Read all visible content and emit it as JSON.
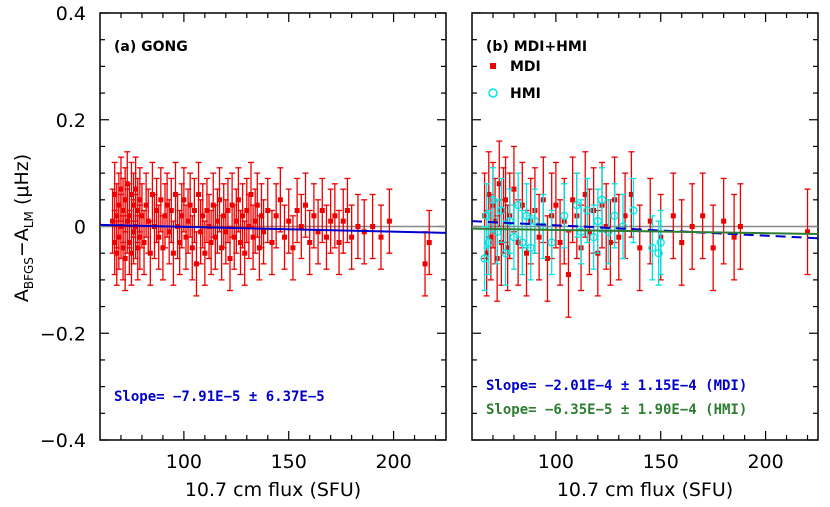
{
  "colors": {
    "mdi_gong": "#ee0000",
    "hmi": "#00e5e5",
    "fit_blue": "#0000cc",
    "fit_green": "#2e7d32",
    "zero_line": "#888888"
  },
  "chart_data": [
    {
      "type": "scatter",
      "panel": "a",
      "panel_label": "(a) GONG",
      "xlabel": "10.7 cm flux (SFU)",
      "ylabel_main": "A",
      "ylabel_sub1": "BFGS",
      "ylabel_mid": "−A",
      "ylabel_sub2": "LM",
      "ylabel_units": " (μHz)",
      "xlim": [
        60,
        225
      ],
      "ylim": [
        -0.4,
        0.4
      ],
      "x_ticks": [
        100,
        150,
        200
      ],
      "x_tick_labels": [
        "100",
        "150",
        "200"
      ],
      "y_ticks": [
        0.4,
        0.2,
        0,
        -0.2,
        -0.4
      ],
      "y_tick_labels": [
        "0.4",
        "0.2",
        "0",
        "−0.2",
        "−0.4"
      ],
      "series": [
        {
          "marker": "filled-square",
          "color": "#ee0000",
          "err": 0.06,
          "points": [
            [
              66,
              0.01
            ],
            [
              67,
              -0.03
            ],
            [
              67,
              0.06
            ],
            [
              68,
              0.02
            ],
            [
              68,
              -0.05
            ],
            [
              69,
              0.04
            ],
            [
              69,
              -0.02
            ],
            [
              70,
              0.07
            ],
            [
              70,
              0.0
            ],
            [
              71,
              -0.04
            ],
            [
              71,
              0.03
            ],
            [
              72,
              0.05
            ],
            [
              72,
              -0.06
            ],
            [
              73,
              0.01
            ],
            [
              73,
              0.08
            ],
            [
              74,
              -0.03
            ],
            [
              74,
              0.02
            ],
            [
              75,
              0.06
            ],
            [
              75,
              -0.05
            ],
            [
              76,
              0.04
            ],
            [
              76,
              -0.01
            ],
            [
              77,
              0.07
            ],
            [
              77,
              0.0
            ],
            [
              78,
              -0.04
            ],
            [
              78,
              0.03
            ],
            [
              79,
              0.05
            ],
            [
              79,
              -0.02
            ],
            [
              80,
              0.02
            ],
            [
              81,
              -0.03
            ],
            [
              82,
              0.04
            ],
            [
              83,
              0.01
            ],
            [
              84,
              -0.05
            ],
            [
              85,
              0.06
            ],
            [
              86,
              0.0
            ],
            [
              87,
              0.03
            ],
            [
              88,
              -0.02
            ],
            [
              89,
              0.05
            ],
            [
              90,
              -0.04
            ],
            [
              91,
              0.02
            ],
            [
              92,
              0.04
            ],
            [
              93,
              -0.01
            ],
            [
              94,
              0.03
            ],
            [
              95,
              -0.05
            ],
            [
              96,
              0.06
            ],
            [
              97,
              0.0
            ],
            [
              98,
              -0.03
            ],
            [
              99,
              0.02
            ],
            [
              100,
              0.05
            ],
            [
              101,
              -0.02
            ],
            [
              102,
              0.01
            ],
            [
              103,
              0.04
            ],
            [
              104,
              -0.04
            ],
            [
              105,
              0.03
            ],
            [
              106,
              -0.07
            ],
            [
              107,
              0.06
            ],
            [
              108,
              -0.01
            ],
            [
              109,
              0.02
            ],
            [
              110,
              -0.05
            ],
            [
              111,
              0.03
            ],
            [
              112,
              0.0
            ],
            [
              113,
              -0.03
            ],
            [
              114,
              0.04
            ],
            [
              115,
              -0.02
            ],
            [
              116,
              0.01
            ],
            [
              117,
              0.05
            ],
            [
              118,
              -0.04
            ],
            [
              119,
              0.02
            ],
            [
              120,
              -0.01
            ],
            [
              121,
              0.03
            ],
            [
              122,
              -0.06
            ],
            [
              123,
              0.04
            ],
            [
              124,
              -0.02
            ],
            [
              125,
              0.01
            ],
            [
              126,
              0.05
            ],
            [
              127,
              -0.03
            ],
            [
              128,
              0.02
            ],
            [
              129,
              -0.05
            ],
            [
              130,
              0.03
            ],
            [
              131,
              0.0
            ],
            [
              132,
              0.06
            ],
            [
              133,
              -0.02
            ],
            [
              134,
              0.01
            ],
            [
              135,
              0.04
            ],
            [
              136,
              -0.04
            ],
            [
              137,
              0.02
            ],
            [
              138,
              -0.01
            ],
            [
              140,
              0.03
            ],
            [
              142,
              -0.03
            ],
            [
              144,
              0.02
            ],
            [
              146,
              0.05
            ],
            [
              148,
              -0.02
            ],
            [
              150,
              0.01
            ],
            [
              152,
              -0.04
            ],
            [
              154,
              0.03
            ],
            [
              156,
              0.0
            ],
            [
              158,
              0.04
            ],
            [
              160,
              -0.03
            ],
            [
              162,
              0.02
            ],
            [
              164,
              -0.01
            ],
            [
              166,
              0.03
            ],
            [
              168,
              -0.02
            ],
            [
              170,
              0.01
            ],
            [
              172,
              0.02
            ],
            [
              174,
              -0.03
            ],
            [
              176,
              0.01
            ],
            [
              178,
              0.03
            ],
            [
              180,
              -0.02
            ],
            [
              183,
              0.0
            ],
            [
              186,
              -0.01
            ],
            [
              190,
              0.0
            ],
            [
              194,
              -0.02
            ],
            [
              198,
              0.01
            ],
            [
              215,
              -0.07
            ],
            [
              217,
              -0.03
            ]
          ]
        }
      ],
      "fits": [
        {
          "color": "#0000cc",
          "style": "solid",
          "y_at_xmin": 0.003,
          "y_at_xmax": -0.012
        }
      ],
      "annotations": [
        {
          "text": "Slope= −7.91E−5 ± 6.37E−5",
          "color": "#0000cc"
        }
      ]
    },
    {
      "type": "scatter",
      "panel": "b",
      "panel_label": "(b) MDI+HMI",
      "xlabel": "10.7 cm flux (SFU)",
      "xlim": [
        60,
        225
      ],
      "ylim": [
        -0.4,
        0.4
      ],
      "x_ticks": [
        100,
        150,
        200
      ],
      "x_tick_labels": [
        "100",
        "150",
        "200"
      ],
      "legend": [
        {
          "label": "MDI",
          "marker": "filled-square",
          "color": "#ee0000"
        },
        {
          "label": "HMI",
          "marker": "open-circle",
          "color": "#00e5e5"
        }
      ],
      "series": [
        {
          "name": "MDI",
          "marker": "filled-square",
          "color": "#ee0000",
          "err": 0.08,
          "points": [
            [
              66,
              0.02
            ],
            [
              67,
              -0.05
            ],
            [
              68,
              0.06
            ],
            [
              69,
              -0.02
            ],
            [
              70,
              0.04
            ],
            [
              71,
              0.01
            ],
            [
              72,
              -0.06
            ],
            [
              73,
              0.08
            ],
            [
              74,
              -0.03
            ],
            [
              75,
              0.03
            ],
            [
              76,
              0.05
            ],
            [
              77,
              -0.04
            ],
            [
              78,
              0.02
            ],
            [
              80,
              0.07
            ],
            [
              82,
              -0.03
            ],
            [
              84,
              0.04
            ],
            [
              86,
              -0.05
            ],
            [
              88,
              0.01
            ],
            [
              90,
              0.03
            ],
            [
              92,
              -0.02
            ],
            [
              94,
              0.05
            ],
            [
              96,
              -0.06
            ],
            [
              98,
              0.02
            ],
            [
              100,
              0.04
            ],
            [
              102,
              -0.03
            ],
            [
              104,
              0.01
            ],
            [
              106,
              -0.09
            ],
            [
              108,
              0.05
            ],
            [
              110,
              0.02
            ],
            [
              112,
              -0.04
            ],
            [
              114,
              0.06
            ],
            [
              116,
              -0.01
            ],
            [
              118,
              0.03
            ],
            [
              120,
              -0.05
            ],
            [
              122,
              0.04
            ],
            [
              124,
              0.0
            ],
            [
              126,
              -0.03
            ],
            [
              128,
              0.05
            ],
            [
              130,
              -0.02
            ],
            [
              133,
              0.02
            ],
            [
              136,
              0.06
            ],
            [
              140,
              -0.04
            ],
            [
              145,
              0.01
            ],
            [
              150,
              -0.02
            ],
            [
              156,
              0.02
            ],
            [
              160,
              -0.03
            ],
            [
              165,
              0.0
            ],
            [
              170,
              0.02
            ],
            [
              175,
              -0.04
            ],
            [
              180,
              0.01
            ],
            [
              185,
              -0.02
            ],
            [
              188,
              0.0
            ],
            [
              220,
              -0.01
            ]
          ]
        },
        {
          "name": "HMI",
          "marker": "open-circle",
          "color": "#00e5e5",
          "err": 0.06,
          "points": [
            [
              66,
              -0.06
            ],
            [
              67,
              0.02
            ],
            [
              68,
              -0.03
            ],
            [
              70,
              0.05
            ],
            [
              72,
              -0.01
            ],
            [
              74,
              0.03
            ],
            [
              76,
              -0.05
            ],
            [
              78,
              0.01
            ],
            [
              80,
              -0.02
            ],
            [
              82,
              0.04
            ],
            [
              84,
              -0.03
            ],
            [
              86,
              0.02
            ],
            [
              88,
              -0.04
            ],
            [
              90,
              0.01
            ],
            [
              94,
              0.0
            ],
            [
              98,
              -0.03
            ],
            [
              104,
              0.02
            ],
            [
              110,
              0.04
            ],
            [
              112,
              -0.01
            ],
            [
              115,
              0.03
            ],
            [
              118,
              -0.02
            ],
            [
              120,
              0.01
            ],
            [
              122,
              0.05
            ],
            [
              125,
              -0.01
            ],
            [
              128,
              0.02
            ],
            [
              132,
              0.0
            ],
            [
              137,
              0.03
            ],
            [
              146,
              -0.04
            ],
            [
              149,
              -0.05
            ],
            [
              150,
              -0.03
            ]
          ]
        }
      ],
      "fits": [
        {
          "color": "#0000cc",
          "style": "dashed",
          "y_at_xmin": 0.01,
          "y_at_xmax": -0.022
        },
        {
          "color": "#2e7d32",
          "style": "solid",
          "y_at_xmin": -0.004,
          "y_at_xmax": -0.014
        }
      ],
      "annotations": [
        {
          "text": "Slope= −2.01E−4 ± 1.15E−4 (MDI)",
          "color": "#0000cc"
        },
        {
          "text": "Slope= −6.35E−5 ± 1.90E−4 (HMI)",
          "color": "#2e7d32"
        }
      ]
    }
  ]
}
